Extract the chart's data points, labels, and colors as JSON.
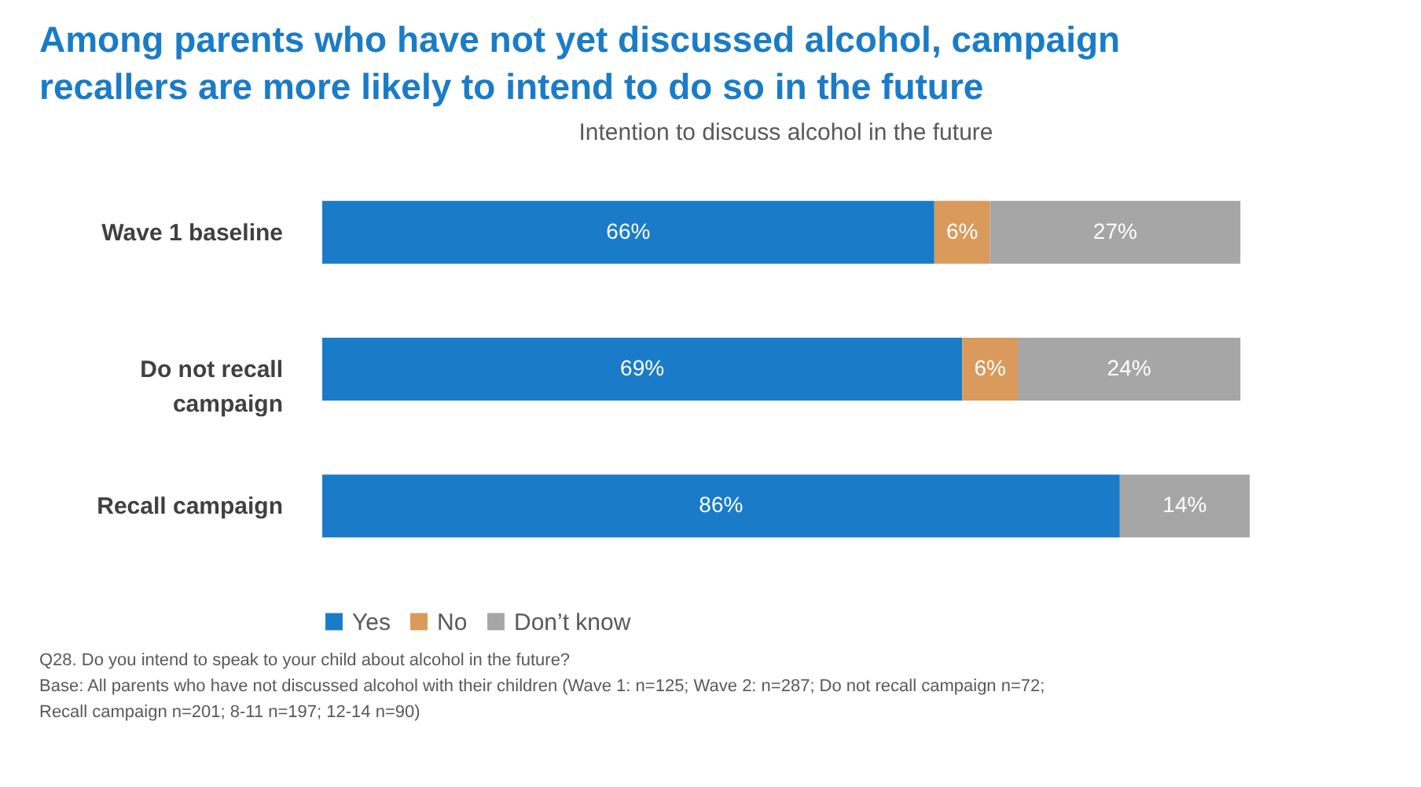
{
  "chart_data": {
    "type": "bar",
    "orientation": "horizontal",
    "stacked": true,
    "title": "Among parents who have not yet discussed alcohol, campaign recallers are more likely to intend to do so in the future",
    "subtitle": "Intention to discuss alcohol in the future",
    "categories": [
      "Wave 1 baseline",
      "Do not recall campaign",
      "Recall campaign"
    ],
    "series": [
      {
        "name": "Yes",
        "color": "#1a7cc8",
        "values": [
          66,
          69,
          86
        ],
        "value_labels": [
          "66%",
          "69%",
          "86%"
        ]
      },
      {
        "name": "No",
        "color": "#d99a5b",
        "values": [
          6,
          6,
          null
        ],
        "value_labels": [
          "6%",
          "6%",
          null
        ]
      },
      {
        "name": "Don’t know",
        "color": "#a6a6a6",
        "values": [
          27,
          24,
          14
        ],
        "value_labels": [
          "27%",
          "24%",
          "14%"
        ]
      }
    ],
    "legend": "bottom",
    "annotations": [
      "Q28. Do you intend to speak to your child about alcohol in the future?",
      "Base: All parents who have not discussed alcohol with their children (Wave 1: n=125; Wave 2: n=287; Do not recall campaign n=72;",
      "Recall campaign n=201; 8-11 n=197; 12-14 n=90)"
    ]
  }
}
